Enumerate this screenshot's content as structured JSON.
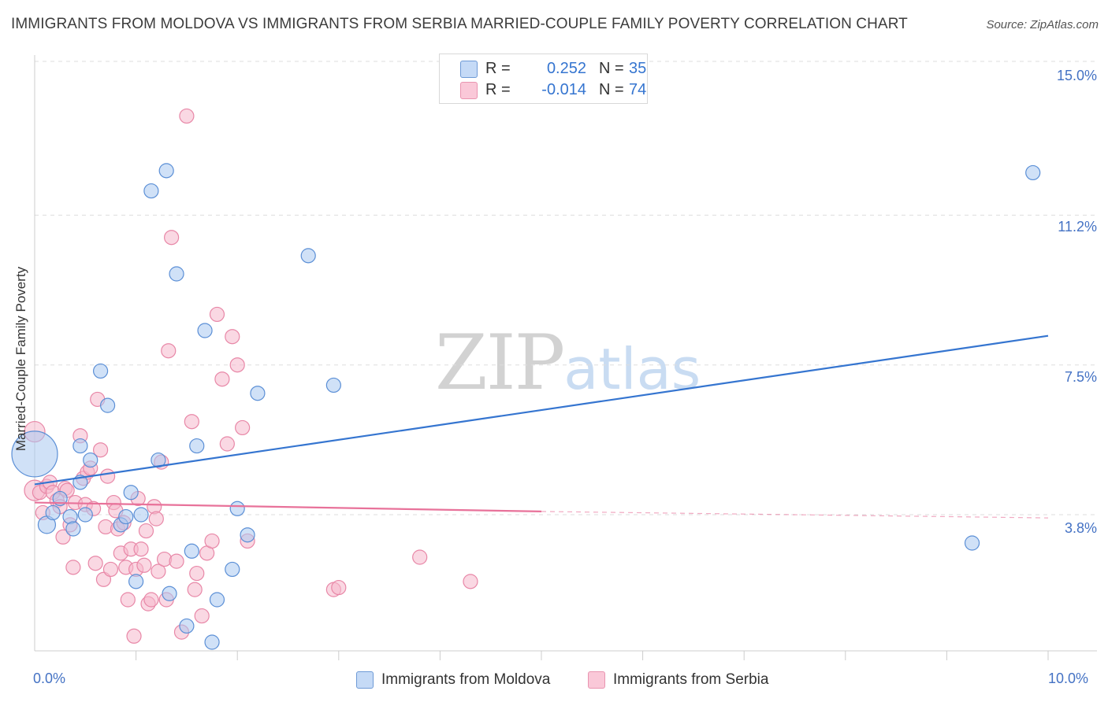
{
  "header": {
    "title": "IMMIGRANTS FROM MOLDOVA VS IMMIGRANTS FROM SERBIA MARRIED-COUPLE FAMILY POVERTY CORRELATION CHART",
    "source": "Source: ZipAtlas.com"
  },
  "watermark": {
    "zip": "ZIP",
    "atlas": "atlas"
  },
  "legend": {
    "r_label": "R =",
    "n_label": "N =",
    "moldova": {
      "r": "0.252",
      "n": "35"
    },
    "serbia": {
      "r": "-0.014",
      "n": "74"
    }
  },
  "colors": {
    "moldova_fill": "#aac8f0",
    "moldova_stroke": "#5b8fd6",
    "moldova_line": "#3575d0",
    "serbia_fill": "#f6b8cc",
    "serbia_stroke": "#e887a7",
    "serbia_line": "#e8729a",
    "tick_text": "#4472c4"
  },
  "chart_data": {
    "type": "scatter",
    "title": "IMMIGRANTS FROM MOLDOVA VS IMMIGRANTS FROM SERBIA MARRIED-COUPLE FAMILY POVERTY CORRELATION CHART",
    "xlabel": "",
    "ylabel": "Married-Couple Family Poverty",
    "xlim": [
      0,
      10.0
    ],
    "ylim": [
      0,
      15.6
    ],
    "x_tick_labels": [
      "0.0%",
      "10.0%"
    ],
    "y_ticks": [
      3.8,
      7.5,
      11.2,
      15.0
    ],
    "y_tick_labels": [
      "3.8%",
      "7.5%",
      "11.2%",
      "15.0%"
    ],
    "grid": true,
    "legend_position": "top-center",
    "series": [
      {
        "name": "Immigrants from Moldova",
        "r": 0.252,
        "n": 35,
        "trend": {
          "x0": 0.0,
          "y0": 4.55,
          "x1": 10.0,
          "y1": 8.22
        },
        "points": [
          [
            0.0,
            5.3,
            30
          ],
          [
            0.12,
            3.55,
            12
          ],
          [
            0.18,
            3.85,
            10
          ],
          [
            0.25,
            4.2,
            10
          ],
          [
            0.35,
            3.75,
            10
          ],
          [
            0.38,
            3.45,
            10
          ],
          [
            0.45,
            4.6,
            10
          ],
          [
            0.5,
            3.8,
            10
          ],
          [
            0.45,
            5.5,
            10
          ],
          [
            0.55,
            5.15,
            10
          ],
          [
            0.65,
            7.35,
            10
          ],
          [
            0.72,
            6.5,
            10
          ],
          [
            0.85,
            3.55,
            10
          ],
          [
            0.9,
            3.75,
            10
          ],
          [
            0.95,
            4.35,
            10
          ],
          [
            1.0,
            2.15,
            10
          ],
          [
            1.05,
            3.8,
            10
          ],
          [
            1.15,
            11.8,
            10
          ],
          [
            1.22,
            5.15,
            10
          ],
          [
            1.3,
            12.3,
            10
          ],
          [
            1.33,
            1.85,
            10
          ],
          [
            1.4,
            9.75,
            10
          ],
          [
            1.5,
            1.05,
            10
          ],
          [
            1.55,
            2.9,
            10
          ],
          [
            1.6,
            5.5,
            10
          ],
          [
            1.68,
            8.35,
            10
          ],
          [
            1.75,
            0.65,
            10
          ],
          [
            1.8,
            1.7,
            10
          ],
          [
            1.95,
            2.45,
            10
          ],
          [
            2.0,
            3.95,
            10
          ],
          [
            2.1,
            3.3,
            10
          ],
          [
            2.2,
            6.8,
            10
          ],
          [
            2.7,
            10.2,
            10
          ],
          [
            2.95,
            7.0,
            10
          ],
          [
            9.25,
            3.1,
            10
          ],
          [
            9.85,
            12.25,
            10
          ]
        ]
      },
      {
        "name": "Immigrants from Serbia",
        "r": -0.014,
        "n": 74,
        "trend_solid": {
          "x0": 0.0,
          "y0": 4.1,
          "x1": 5.0,
          "y1": 3.88
        },
        "trend_dashed": {
          "x0": 5.0,
          "y0": 3.88,
          "x1": 10.0,
          "y1": 3.72
        },
        "points": [
          [
            0.0,
            5.85,
            14
          ],
          [
            0.0,
            4.4,
            14
          ],
          [
            0.05,
            4.35,
            10
          ],
          [
            0.08,
            3.85,
            10
          ],
          [
            0.12,
            4.5,
            10
          ],
          [
            0.15,
            4.6,
            10
          ],
          [
            0.18,
            4.35,
            10
          ],
          [
            0.22,
            4.15,
            10
          ],
          [
            0.25,
            4.0,
            10
          ],
          [
            0.28,
            3.25,
            10
          ],
          [
            0.3,
            4.45,
            10
          ],
          [
            0.32,
            4.4,
            10
          ],
          [
            0.35,
            3.55,
            10
          ],
          [
            0.38,
            2.5,
            10
          ],
          [
            0.4,
            4.1,
            10
          ],
          [
            0.45,
            5.75,
            10
          ],
          [
            0.48,
            4.7,
            10
          ],
          [
            0.5,
            4.05,
            10
          ],
          [
            0.52,
            4.85,
            10
          ],
          [
            0.55,
            4.95,
            10
          ],
          [
            0.58,
            3.95,
            10
          ],
          [
            0.6,
            2.6,
            10
          ],
          [
            0.62,
            6.65,
            10
          ],
          [
            0.65,
            5.4,
            10
          ],
          [
            0.68,
            2.2,
            10
          ],
          [
            0.7,
            3.5,
            10
          ],
          [
            0.72,
            4.75,
            10
          ],
          [
            0.75,
            2.45,
            10
          ],
          [
            0.78,
            4.1,
            10
          ],
          [
            0.8,
            3.9,
            10
          ],
          [
            0.82,
            3.45,
            10
          ],
          [
            0.85,
            2.85,
            10
          ],
          [
            0.88,
            3.6,
            10
          ],
          [
            0.9,
            2.5,
            10
          ],
          [
            0.92,
            1.7,
            10
          ],
          [
            0.95,
            2.95,
            10
          ],
          [
            0.98,
            0.8,
            10
          ],
          [
            1.0,
            2.45,
            10
          ],
          [
            1.02,
            4.2,
            10
          ],
          [
            1.05,
            2.95,
            10
          ],
          [
            1.08,
            2.55,
            10
          ],
          [
            1.1,
            3.4,
            10
          ],
          [
            1.12,
            1.6,
            10
          ],
          [
            1.15,
            1.7,
            10
          ],
          [
            1.18,
            4.0,
            10
          ],
          [
            1.2,
            3.7,
            10
          ],
          [
            1.22,
            2.4,
            10
          ],
          [
            1.25,
            5.1,
            10
          ],
          [
            1.28,
            2.7,
            10
          ],
          [
            1.3,
            1.7,
            10
          ],
          [
            1.32,
            7.85,
            10
          ],
          [
            1.35,
            10.65,
            10
          ],
          [
            1.4,
            2.65,
            10
          ],
          [
            1.45,
            0.9,
            10
          ],
          [
            1.5,
            13.65,
            10
          ],
          [
            1.55,
            6.1,
            10
          ],
          [
            1.58,
            1.95,
            10
          ],
          [
            1.6,
            2.35,
            10
          ],
          [
            1.65,
            1.3,
            10
          ],
          [
            1.7,
            2.85,
            10
          ],
          [
            1.75,
            3.15,
            10
          ],
          [
            1.8,
            8.75,
            10
          ],
          [
            1.85,
            7.15,
            10
          ],
          [
            1.9,
            5.55,
            10
          ],
          [
            1.95,
            8.2,
            10
          ],
          [
            2.0,
            7.5,
            10
          ],
          [
            2.05,
            5.95,
            10
          ],
          [
            2.1,
            3.15,
            10
          ],
          [
            2.95,
            1.95,
            10
          ],
          [
            3.0,
            2.0,
            10
          ],
          [
            3.8,
            2.75,
            10
          ],
          [
            4.3,
            2.15,
            10
          ]
        ]
      }
    ]
  },
  "bottom_legend": {
    "moldova": "Immigrants from Moldova",
    "serbia": "Immigrants from Serbia"
  }
}
